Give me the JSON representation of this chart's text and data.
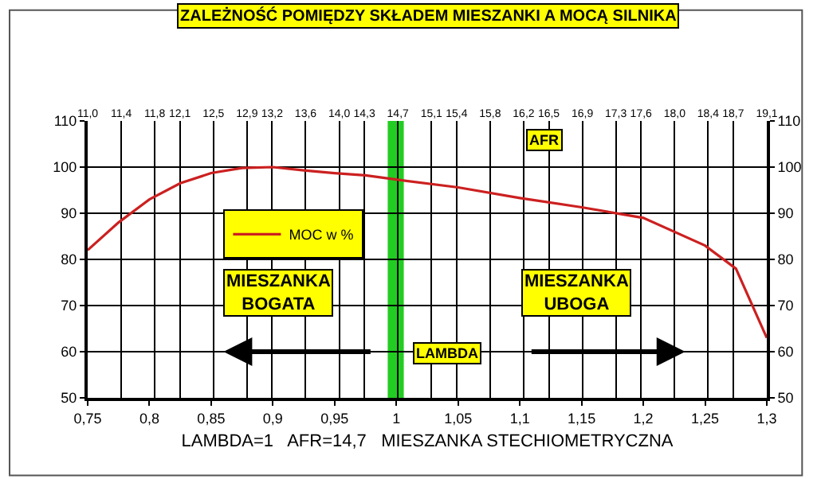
{
  "chart_data": {
    "type": "line",
    "title": "ZALEŻNOŚĆ POMIĘDZY SKŁADEM MIESZANKI A MOCĄ SILNIKA",
    "xlabel": "LAMBDA=1   AFR=14,7   MIESZANKA STECHIOMETRYCZNA",
    "x": [
      0.75,
      0.775,
      0.8,
      0.825,
      0.85,
      0.875,
      0.9,
      0.925,
      0.95,
      0.975,
      1.0,
      1.05,
      1.1,
      1.15,
      1.2,
      1.25,
      1.275,
      1.3
    ],
    "series": [
      {
        "name": "MOC w %",
        "color": "#cc2020",
        "values": [
          82,
          88,
          93,
          96.5,
          98.7,
          99.8,
          100,
          99.3,
          98.7,
          98.2,
          97.3,
          95.6,
          93.3,
          91.3,
          89,
          83,
          78,
          63
        ]
      }
    ],
    "xlim": [
      0.75,
      1.3
    ],
    "xticks": [
      {
        "value": 0.75,
        "label": "0,75"
      },
      {
        "value": 0.8,
        "label": "0,8"
      },
      {
        "value": 0.85,
        "label": "0,85"
      },
      {
        "value": 0.9,
        "label": "0,9"
      },
      {
        "value": 0.95,
        "label": "0,95"
      },
      1,
      {
        "value": 1.05,
        "label": "1,05"
      },
      {
        "value": 1.1,
        "label": "1,1"
      },
      {
        "value": 1.15,
        "label": "1,15"
      },
      {
        "value": 1.2,
        "label": "1,2"
      },
      {
        "value": 1.25,
        "label": "1,25"
      },
      {
        "value": 1.3,
        "label": "1,3"
      }
    ],
    "x2lim": [
      11.0,
      19.1
    ],
    "x2ticks": [
      {
        "value": 11.0,
        "label": "11,0"
      },
      {
        "value": 11.4,
        "label": "11,4"
      },
      {
        "value": 11.8,
        "label": "11,8"
      },
      {
        "value": 12.1,
        "label": "12,1"
      },
      {
        "value": 12.5,
        "label": "12,5"
      },
      {
        "value": 12.9,
        "label": "12,9"
      },
      {
        "value": 13.2,
        "label": "13,2"
      },
      {
        "value": 13.6,
        "label": "13,6"
      },
      {
        "value": 14.0,
        "label": "14,0"
      },
      {
        "value": 14.3,
        "label": "14,3"
      },
      {
        "value": 14.7,
        "label": "14,7"
      },
      {
        "value": 15.1,
        "label": "15,1"
      },
      {
        "value": 15.4,
        "label": "15,4"
      },
      {
        "value": 15.8,
        "label": "15,8"
      },
      {
        "value": 16.2,
        "label": "16,2"
      },
      {
        "value": 16.5,
        "label": "16,5"
      },
      {
        "value": 16.9,
        "label": "16,9"
      },
      {
        "value": 17.3,
        "label": "17,3"
      },
      {
        "value": 17.6,
        "label": "17,6"
      },
      {
        "value": 18.0,
        "label": "18,0"
      },
      {
        "value": 18.4,
        "label": "18,4"
      },
      {
        "value": 18.7,
        "label": "18,7"
      },
      {
        "value": 19.1,
        "label": "19,1"
      }
    ],
    "ylim": [
      50,
      110
    ],
    "yticks": [
      50,
      60,
      70,
      80,
      90,
      100,
      110
    ],
    "y2lim": [
      50,
      110
    ],
    "y2ticks": [
      50,
      60,
      70,
      80,
      90,
      100,
      110
    ],
    "bands": [
      {
        "axis": "x",
        "from": 0.993,
        "to": 1.006,
        "color": "#22cc22"
      }
    ],
    "annotations": [
      "AFR",
      "MIESZANKA\nBOGATA",
      "MIESZANKA\nUBOGA",
      "LAMBDA"
    ],
    "grid": true,
    "legend": "top left",
    "marker": "none",
    "line_style": "solid"
  }
}
